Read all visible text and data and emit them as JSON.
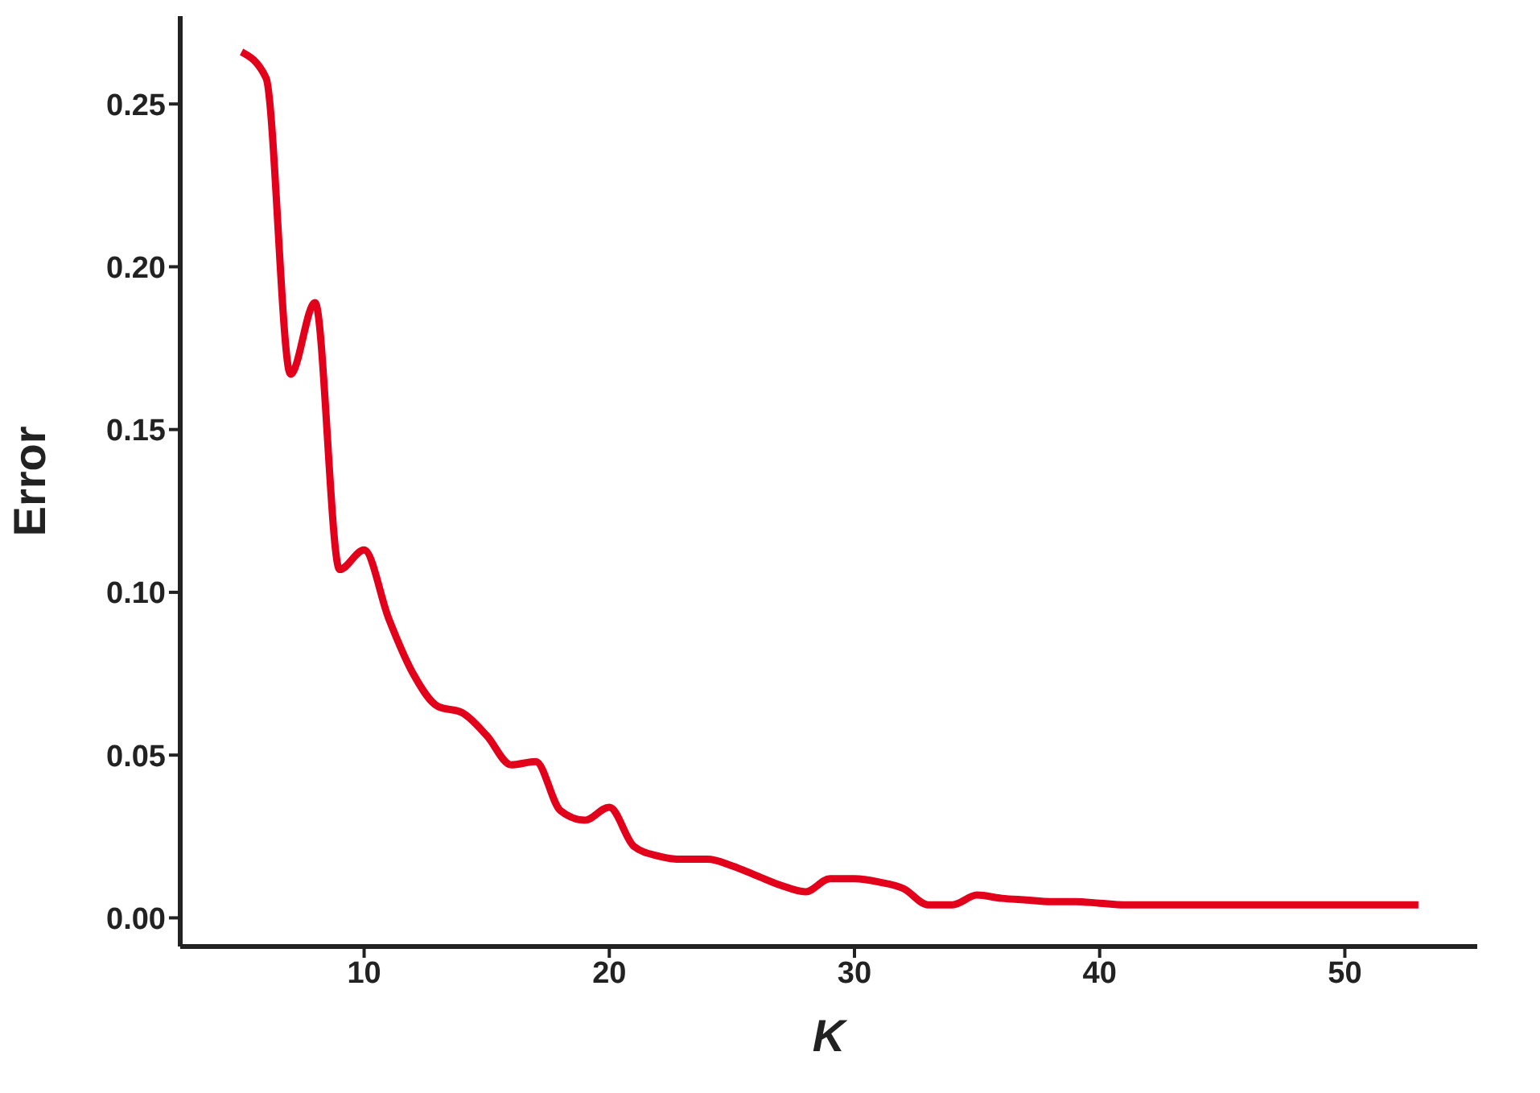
{
  "chart_data": {
    "type": "line",
    "xlabel": "K",
    "ylabel": "Error",
    "x": [
      5,
      6,
      7,
      8,
      9,
      10,
      11,
      12,
      13,
      14,
      15,
      16,
      17,
      18,
      19,
      20,
      21,
      22,
      23,
      24,
      25,
      26,
      27,
      28,
      29,
      30,
      31,
      32,
      33,
      34,
      35,
      36,
      37,
      38,
      39,
      40,
      41,
      42,
      43,
      44,
      45,
      46,
      47,
      48,
      49,
      50,
      51,
      52,
      53
    ],
    "series": [
      {
        "color": "#e3001b",
        "values": [
          0.266,
          0.258,
          0.167,
          0.189,
          0.107,
          0.113,
          0.092,
          0.075,
          0.065,
          0.063,
          0.056,
          0.047,
          0.048,
          0.033,
          0.03,
          0.034,
          0.022,
          0.019,
          0.018,
          0.018,
          0.016,
          0.013,
          0.01,
          0.008,
          0.012,
          0.012,
          0.011,
          0.009,
          0.004,
          0.004,
          0.007,
          0.006,
          0.0055,
          0.005,
          0.005,
          0.0045,
          0.004,
          0.004,
          0.004,
          0.004,
          0.004,
          0.004,
          0.004,
          0.004,
          0.004,
          0.004,
          0.004,
          0.004,
          0.004
        ]
      }
    ],
    "xlim": [
      2.5,
      55.4
    ],
    "ylim": [
      -0.0088,
      0.277
    ],
    "xticks": [
      10,
      20,
      30,
      40,
      50
    ],
    "yticks": [
      {
        "value": 0,
        "label": "0.00"
      },
      {
        "value": 0.05,
        "label": "0.05"
      },
      {
        "value": 0.1,
        "label": "0.10"
      },
      {
        "value": 0.15,
        "label": "0.15"
      },
      {
        "value": 0.2,
        "label": "0.20"
      },
      {
        "value": 0.25,
        "label": "0.25"
      }
    ],
    "grid": false,
    "legend": false,
    "marker": "none",
    "line_style": "solid"
  }
}
